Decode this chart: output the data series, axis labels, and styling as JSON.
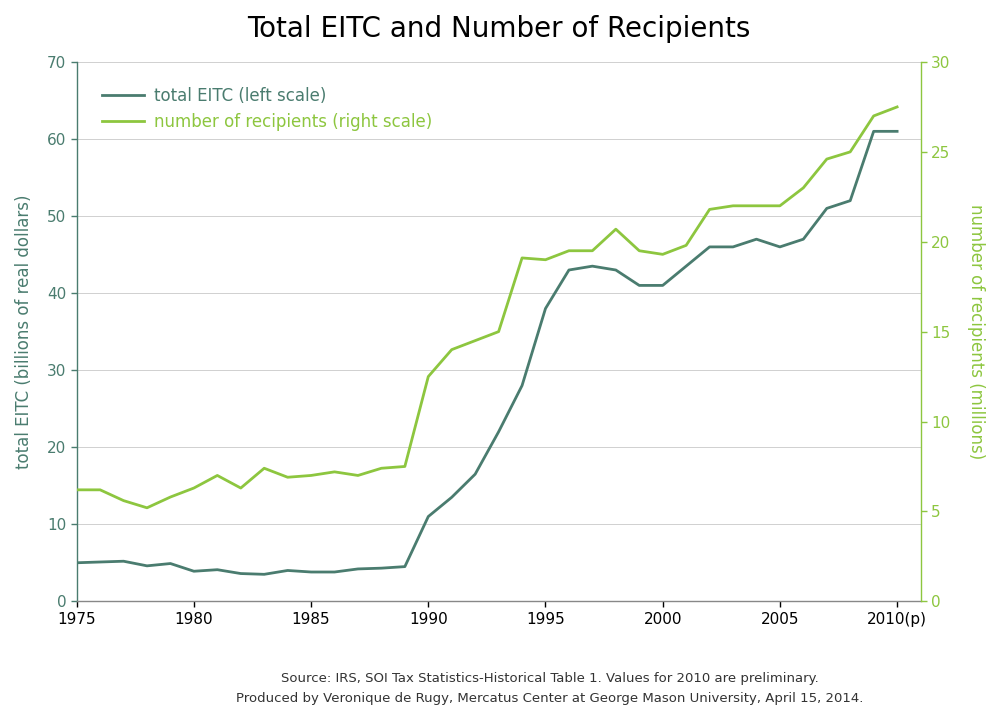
{
  "title": "Total EITC and Number of Recipients",
  "ylabel_left": "total EITC (billions of real dollars)",
  "ylabel_right": "number of recipients (millions)",
  "left_color": "#4a7c6f",
  "right_color": "#8dc63f",
  "ylim_left": [
    0,
    70
  ],
  "ylim_right": [
    0,
    30
  ],
  "yticks_left": [
    0,
    10,
    20,
    30,
    40,
    50,
    60,
    70
  ],
  "yticks_right": [
    0,
    5,
    10,
    15,
    20,
    25,
    30
  ],
  "source_text": "Source: IRS, SOI Tax Statistics-Historical Table 1. Values for 2010 are preliminary.\nProduced by Veronique de Rugy, Mercatus Center at George Mason University, April 15, 2014.",
  "legend_labels": [
    "total EITC (left scale)",
    "number of recipients (right scale)"
  ],
  "years": [
    1975,
    1976,
    1977,
    1978,
    1979,
    1980,
    1981,
    1982,
    1983,
    1984,
    1985,
    1986,
    1987,
    1988,
    1989,
    1990,
    1991,
    1992,
    1993,
    1994,
    1995,
    1996,
    1997,
    1998,
    1999,
    2000,
    2001,
    2002,
    2003,
    2004,
    2005,
    2006,
    2007,
    2008,
    2009,
    2010
  ],
  "total_eitc": [
    5.0,
    5.1,
    5.2,
    4.6,
    4.9,
    3.9,
    4.1,
    3.6,
    3.5,
    4.0,
    3.8,
    3.8,
    4.2,
    4.3,
    4.5,
    11.0,
    13.5,
    16.5,
    22.0,
    28.0,
    38.0,
    43.0,
    43.5,
    43.0,
    41.0,
    41.0,
    43.5,
    46.0,
    46.0,
    47.0,
    46.0,
    47.0,
    51.0,
    52.0,
    61.0,
    61.0
  ],
  "num_recipients": [
    6.2,
    6.2,
    5.6,
    5.2,
    5.8,
    6.3,
    7.0,
    6.3,
    7.4,
    6.9,
    7.0,
    7.2,
    7.0,
    7.4,
    7.5,
    12.5,
    14.0,
    14.5,
    15.0,
    19.1,
    19.0,
    19.5,
    19.5,
    20.7,
    19.5,
    19.3,
    19.8,
    21.8,
    22.0,
    22.0,
    22.0,
    23.0,
    24.6,
    25.0,
    27.0,
    27.5
  ]
}
